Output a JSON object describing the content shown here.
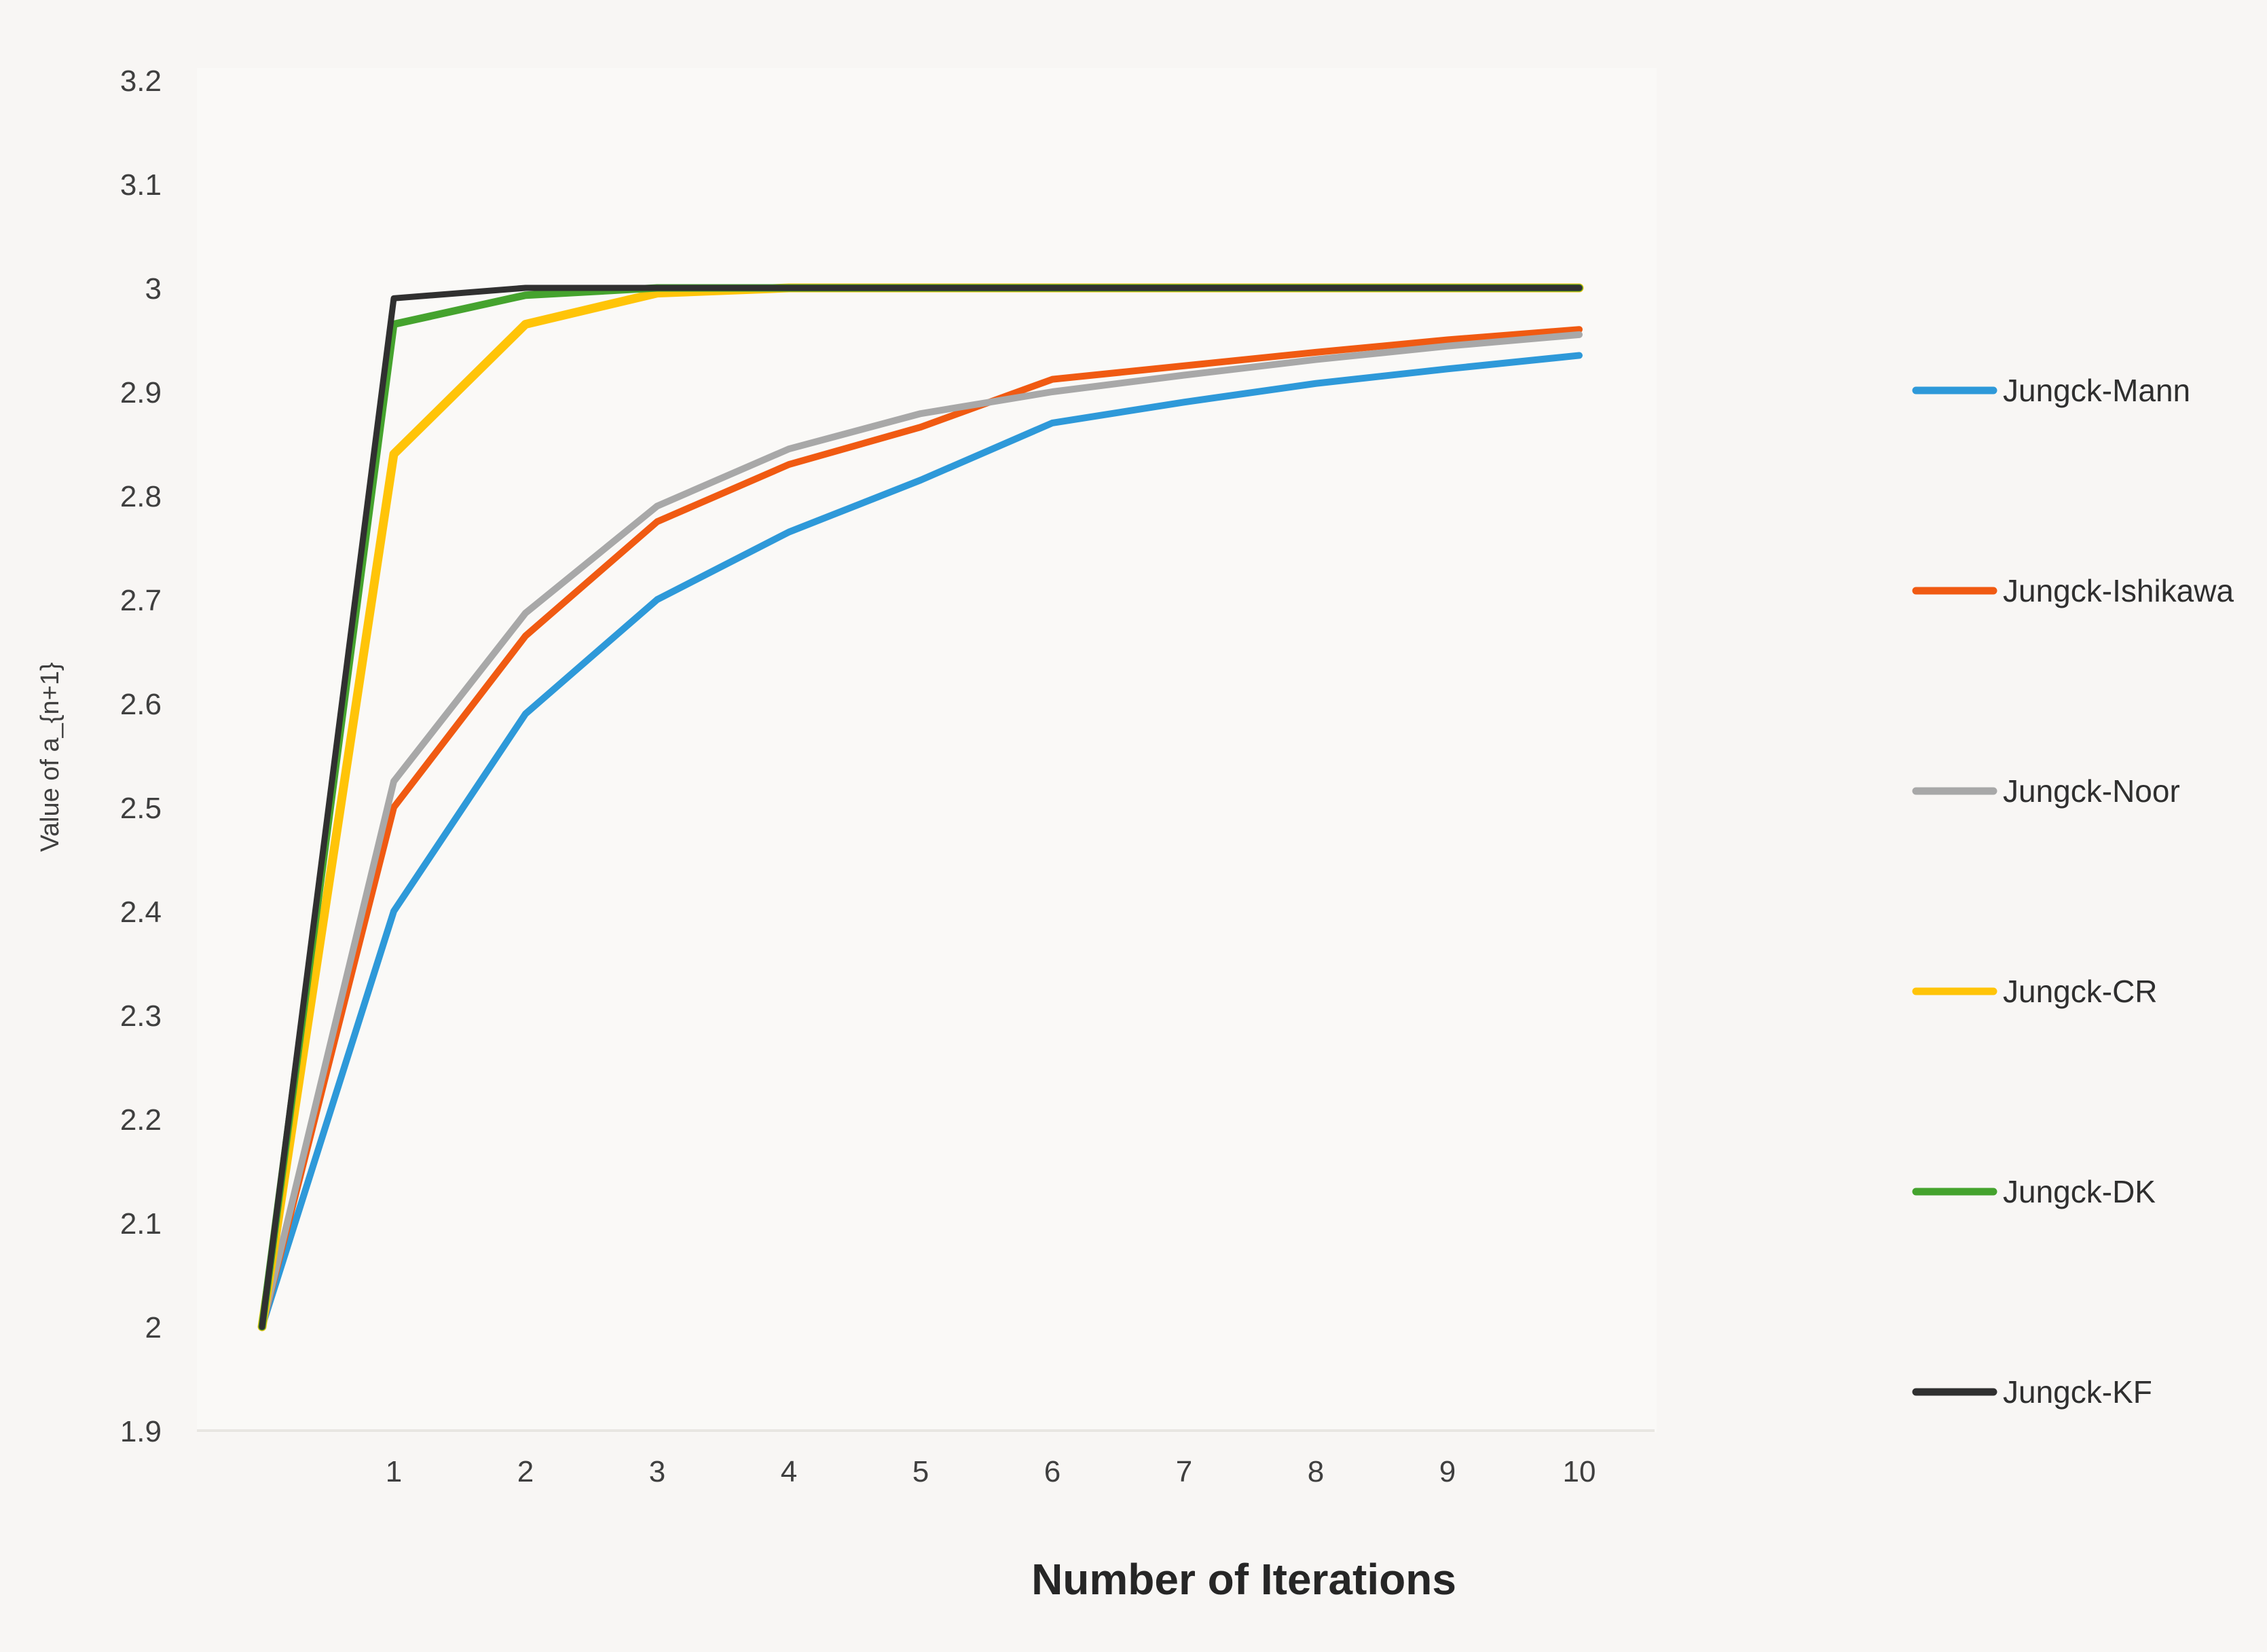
{
  "figure": {
    "background": "#f8f6f4",
    "plot_background": "#faf9f7",
    "axis_line_color": "#e8e6e2",
    "tick_label_color": "#3f3f3f",
    "axis_title_color": "#262626"
  },
  "chart_data": {
    "type": "line",
    "title": "",
    "xlabel": "Number of Iterations",
    "ylabel": "Value of a_{n+1}",
    "x": [
      0,
      1,
      2,
      3,
      4,
      5,
      6,
      7,
      8,
      9,
      10
    ],
    "x_tick_labels": [
      "1",
      "2",
      "3",
      "4",
      "5",
      "6",
      "7",
      "8",
      "9",
      "10"
    ],
    "y_ticks": [
      1.9,
      2.0,
      2.1,
      2.2,
      2.3,
      2.4,
      2.5,
      2.6,
      2.7,
      2.8,
      2.9,
      3.0,
      3.1,
      3.2
    ],
    "y_tick_labels": [
      "1.9",
      "2",
      "2.1",
      "2.2",
      "2.3",
      "2.4",
      "2.5",
      "2.6",
      "2.7",
      "2.8",
      "2.9",
      "3",
      "3.1",
      "3.2"
    ],
    "ylim": [
      1.9,
      3.2
    ],
    "xlim": [
      0,
      10
    ],
    "grid": "baseline-only",
    "legend_position": "right",
    "series": [
      {
        "name": "Jungck-Mann",
        "color": "#2e99d9",
        "values": [
          2.0,
          2.4,
          2.59,
          2.7,
          2.765,
          2.815,
          2.87,
          2.89,
          2.908,
          2.922,
          2.935
        ]
      },
      {
        "name": "Jungck-Ishikawa",
        "color": "#f05a12",
        "values": [
          2.0,
          2.5,
          2.665,
          2.775,
          2.83,
          2.866,
          2.912,
          2.925,
          2.938,
          2.95,
          2.96
        ]
      },
      {
        "name": "Jungck-Noor",
        "color": "#a8a8a8",
        "values": [
          2.0,
          2.525,
          2.687,
          2.79,
          2.845,
          2.879,
          2.9,
          2.916,
          2.931,
          2.944,
          2.955
        ]
      },
      {
        "name": "Jungck-CR",
        "color": "#ffc408",
        "values": [
          2.0,
          2.84,
          2.965,
          2.995,
          3.0,
          3.0,
          3.0,
          3.0,
          3.0,
          3.0,
          3.0
        ]
      },
      {
        "name": "Jungck-DK",
        "color": "#45a32e",
        "values": [
          2.0,
          2.965,
          2.993,
          3.0,
          3.0,
          3.0,
          3.0,
          3.0,
          3.0,
          3.0,
          3.0
        ]
      },
      {
        "name": "Jungck-KF",
        "color": "#303030",
        "values": [
          2.0,
          2.99,
          3.0,
          3.0,
          3.0,
          3.0,
          3.0,
          3.0,
          3.0,
          3.0,
          3.0
        ]
      }
    ]
  }
}
